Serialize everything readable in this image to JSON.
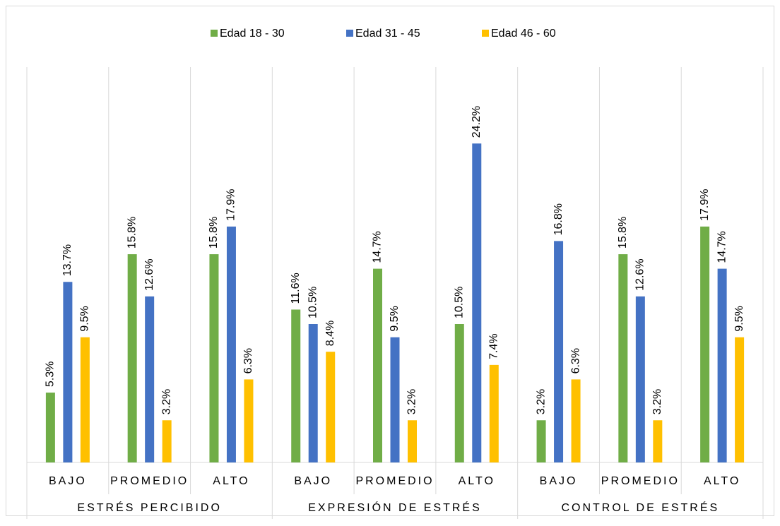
{
  "chart_data": {
    "type": "bar",
    "categories": [
      "BAJO",
      "PROMEDIO",
      "ALTO",
      "BAJO",
      "PROMEDIO",
      "ALTO",
      "BAJO",
      "PROMEDIO",
      "ALTO"
    ],
    "groups": [
      "ESTRÉS PERCIBIDO",
      "EXPRESIÓN DE ESTRÉS",
      "CONTROL DE ESTRÉS"
    ],
    "series": [
      {
        "name": "Edad 18 - 30",
        "color": "#70ad47",
        "values": [
          5.3,
          15.8,
          15.8,
          11.6,
          14.7,
          10.5,
          3.2,
          15.8,
          17.9
        ],
        "value_labels": [
          "5.3%",
          "15.8%",
          "15.8%",
          "11.6%",
          "14.7%",
          "10.5%",
          "3.2%",
          "15.8%",
          "17.9%"
        ]
      },
      {
        "name": "Edad 31 - 45",
        "color": "#4472c4",
        "values": [
          13.7,
          12.6,
          17.9,
          10.5,
          9.5,
          24.2,
          16.8,
          12.6,
          14.7
        ],
        "value_labels": [
          "13.7%",
          "12.6%",
          "17.9%",
          "10.5%",
          "9.5%",
          "24.2%",
          "16.8%",
          "12.6%",
          "14.7%"
        ]
      },
      {
        "name": "Edad 46 - 60",
        "color": "#ffc000",
        "values": [
          9.5,
          3.2,
          6.3,
          8.4,
          3.2,
          7.4,
          6.3,
          3.2,
          9.5
        ],
        "value_labels": [
          "9.5%",
          "3.2%",
          "6.3%",
          "8.4%",
          "3.2%",
          "7.4%",
          "6.3%",
          "3.2%",
          "9.5%"
        ]
      }
    ],
    "ylim": [
      0,
      30
    ],
    "legend": "top"
  }
}
